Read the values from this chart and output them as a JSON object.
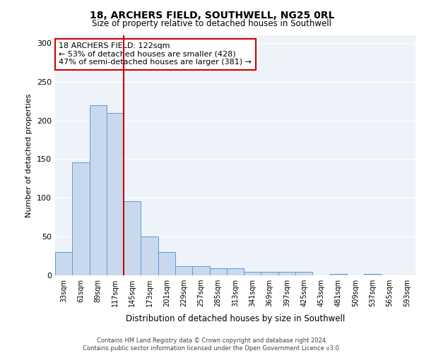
{
  "title1": "18, ARCHERS FIELD, SOUTHWELL, NG25 0RL",
  "title2": "Size of property relative to detached houses in Southwell",
  "xlabel": "Distribution of detached houses by size in Southwell",
  "ylabel": "Number of detached properties",
  "bar_values": [
    30,
    146,
    220,
    210,
    96,
    50,
    30,
    12,
    12,
    9,
    9,
    5,
    5,
    5,
    5,
    0,
    2,
    0,
    2,
    0,
    0
  ],
  "bar_labels": [
    "33sqm",
    "61sqm",
    "89sqm",
    "117sqm",
    "145sqm",
    "173sqm",
    "201sqm",
    "229sqm",
    "257sqm",
    "285sqm",
    "313sqm",
    "341sqm",
    "369sqm",
    "397sqm",
    "425sqm",
    "453sqm",
    "481sqm",
    "509sqm",
    "537sqm",
    "565sqm",
    "593sqm"
  ],
  "bar_color": "#c9d9ed",
  "bar_edgecolor": "#5b9bd5",
  "vline_color": "#cc0000",
  "annotation_text": "18 ARCHERS FIELD: 122sqm\n← 53% of detached houses are smaller (428)\n47% of semi-detached houses are larger (381) →",
  "annotation_box_color": "#ffffff",
  "annotation_box_edgecolor": "#cc0000",
  "ylim": [
    0,
    310
  ],
  "yticks": [
    0,
    50,
    100,
    150,
    200,
    250,
    300
  ],
  "footer_line1": "Contains HM Land Registry data © Crown copyright and database right 2024.",
  "footer_line2": "Contains public sector information licensed under the Open Government Licence v3.0.",
  "background_color": "#eef2f9"
}
